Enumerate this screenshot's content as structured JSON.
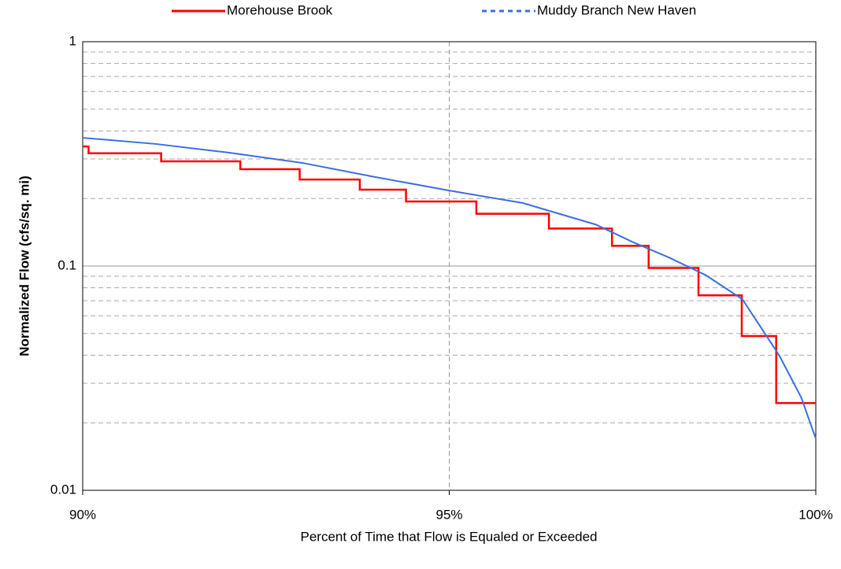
{
  "chart_data": {
    "type": "line",
    "x_label": "Percent of Time that Flow is Equaled or Exceeded",
    "y_label": "Normalized Flow (cfs/sq. mi)",
    "log_y": true,
    "grid": true,
    "legend": "top",
    "xlim": [
      90,
      100
    ],
    "xticks": [
      {
        "value": 90,
        "label": "90%"
      },
      {
        "value": 95,
        "label": "95%"
      },
      {
        "value": 100,
        "label": "100%"
      }
    ],
    "ylim": [
      0.01,
      1
    ],
    "yticks": [
      0.01,
      0.1,
      1
    ],
    "yminor_ticks": [
      0.02,
      0.03,
      0.04,
      0.05,
      0.06,
      0.07,
      0.08,
      0.09,
      0.2,
      0.3,
      0.4,
      0.5,
      0.6,
      0.7,
      0.8,
      0.9
    ],
    "series": [
      {
        "name": "Morehouse Brook",
        "color": "#ff0000",
        "style": "solid",
        "x": [
          90,
          90.08,
          90.08,
          91.07,
          91.07,
          92.15,
          92.15,
          92.96,
          92.96,
          93.78,
          93.78,
          94.41,
          94.41,
          95.37,
          95.37,
          96.36,
          96.36,
          97.22,
          97.22,
          97.72,
          97.72,
          98.4,
          98.4,
          98.99,
          98.99,
          99.46,
          99.46,
          100
        ],
        "values": [
          0.341,
          0.341,
          0.318,
          0.318,
          0.293,
          0.293,
          0.27,
          0.27,
          0.243,
          0.243,
          0.219,
          0.219,
          0.194,
          0.194,
          0.171,
          0.171,
          0.147,
          0.147,
          0.123,
          0.123,
          0.098,
          0.098,
          0.074,
          0.074,
          0.0487,
          0.0487,
          0.0245,
          0.0245
        ]
      },
      {
        "name": "Muddy Branch New Haven",
        "color": "#3b6fe0",
        "style": "dashed",
        "x": [
          90,
          91,
          92,
          93,
          94,
          95,
          96,
          97,
          97.5,
          98,
          98.5,
          99,
          99.5,
          99.8,
          100
        ],
        "values": [
          0.373,
          0.35,
          0.32,
          0.288,
          0.249,
          0.217,
          0.191,
          0.153,
          0.128,
          0.109,
          0.091,
          0.071,
          0.04,
          0.026,
          0.017
        ]
      }
    ]
  }
}
